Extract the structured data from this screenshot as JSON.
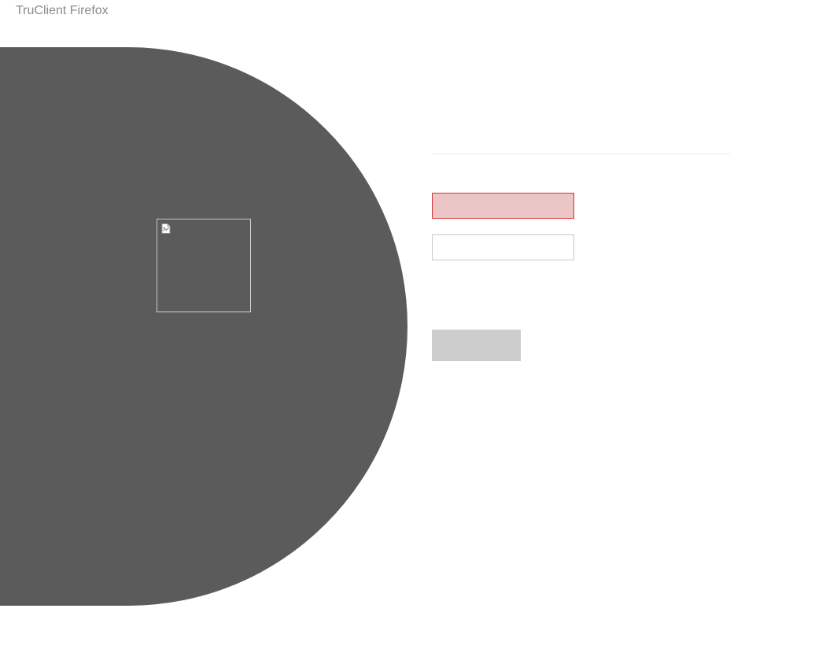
{
  "window": {
    "title": "TruClient Firefox"
  },
  "hero": {
    "background_color": "#5b5b5b",
    "image_icon": "broken-image-icon"
  },
  "login_form": {
    "username": {
      "value": "",
      "placeholder": "",
      "state": "error",
      "background_color": "#ecc5c7",
      "border_color": "#d9303a"
    },
    "password": {
      "value": "",
      "placeholder": ""
    },
    "submit": {
      "label": "",
      "background_color": "#cccccc"
    }
  }
}
